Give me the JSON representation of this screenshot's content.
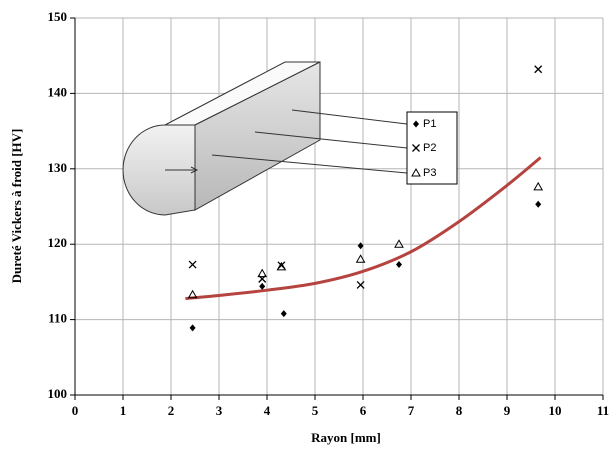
{
  "chart_data": {
    "type": "scatter",
    "x_label": "Rayon [mm]",
    "y_label": "Dureté Vickers à froid [HV]",
    "xlim": [
      0,
      11
    ],
    "xticks": [
      0,
      1,
      2,
      3,
      4,
      5,
      6,
      7,
      8,
      9,
      10,
      11
    ],
    "ylim": [
      100,
      150
    ],
    "yticks": [
      100,
      110,
      120,
      130,
      140,
      150
    ],
    "grid": true,
    "series": [
      {
        "name": "P1",
        "marker": "diamond",
        "color": "#000000",
        "x": [
          2.45,
          3.9,
          4.35,
          5.95,
          6.75,
          9.65
        ],
        "values": [
          108.9,
          114.4,
          110.8,
          119.8,
          117.3,
          125.3
        ]
      },
      {
        "name": "P2",
        "marker": "x",
        "color": "#000000",
        "x": [
          2.45,
          3.9,
          4.3,
          5.95,
          9.65
        ],
        "values": [
          117.3,
          115.4,
          117.2,
          114.6,
          143.2
        ]
      },
      {
        "name": "P3",
        "marker": "triangle",
        "color": "#000000",
        "x": [
          2.45,
          3.9,
          4.3,
          5.95,
          6.75,
          9.65
        ],
        "values": [
          113.3,
          116.1,
          117.0,
          118.0,
          120.0,
          127.6
        ]
      }
    ],
    "trend": {
      "color": "#b5433f",
      "x": [
        2.3,
        3,
        4,
        5,
        6,
        7,
        8,
        9,
        9.7
      ],
      "values": [
        112.8,
        113.2,
        113.9,
        114.8,
        116.4,
        119.0,
        123.0,
        127.8,
        131.5
      ]
    }
  }
}
